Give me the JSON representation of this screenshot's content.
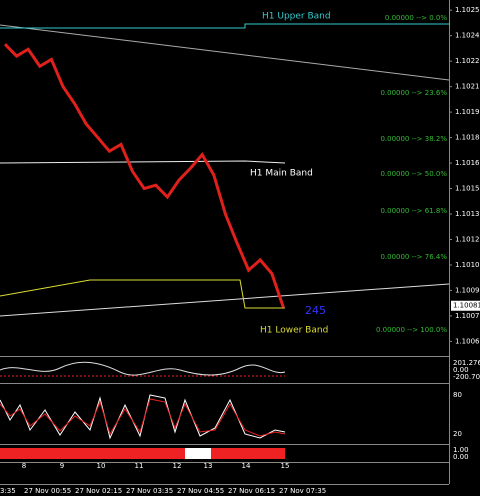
{
  "chart_data": {
    "type": "line",
    "values": [
      1.10235,
      1.10228,
      1.10232,
      1.10222,
      1.10226,
      1.1021,
      1.102,
      1.10188,
      1.1018,
      1.10172,
      1.10176,
      1.1016,
      1.1015,
      1.10152,
      1.10145,
      1.10155,
      1.10162,
      1.1017,
      1.10158,
      1.10135,
      1.10118,
      1.10102,
      1.10108,
      1.101,
      1.1008
    ],
    "color": "#e0201c",
    "ylim": [
      1.10052,
      1.10261
    ],
    "yticks": [
      {
        "value": 1.10255,
        "label": "1.10255"
      },
      {
        "value": 1.1024,
        "label": "1.10240"
      },
      {
        "value": 1.10225,
        "label": "1.10225"
      },
      {
        "value": 1.1021,
        "label": "1.10210"
      },
      {
        "value": 1.10195,
        "label": "1.10195"
      },
      {
        "value": 1.1018,
        "label": "1.10180"
      },
      {
        "value": 1.10165,
        "label": "1.10165"
      },
      {
        "value": 1.1015,
        "label": "1.10150"
      },
      {
        "value": 1.10135,
        "label": "1.10135"
      },
      {
        "value": 1.1012,
        "label": "1.10120"
      },
      {
        "value": 1.10105,
        "label": "1.10105"
      },
      {
        "value": 1.1009,
        "label": "1.10090"
      },
      {
        "value": 1.10075,
        "label": "1.10075"
      },
      {
        "value": 1.1006,
        "label": "1.10060"
      }
    ],
    "current_price": {
      "value": 1.10081,
      "label": "1.10081"
    },
    "fib_labels": [
      "0.00000 --> 0.0%",
      "0.00000 --> 23.6%",
      "0.00000 --> 38.2%",
      "0.00000 --> 50.0%",
      "0.00000 --> 61.8%",
      "0.00000 --> 76.4%",
      "0.00000 --> 100.0%"
    ],
    "band_labels": [
      "H1 Upper Band",
      "H1 Main Band",
      "H1 Lower Band"
    ],
    "counter": "245",
    "cci_labels": [
      "201.276",
      "0.00",
      "-200.70"
    ],
    "stoch_labels": [
      "80",
      "20"
    ],
    "bottom_labels": [
      "1.00",
      "0.00"
    ],
    "day_numbers": [
      "8",
      "9",
      "10",
      "11",
      "12",
      "13",
      "14",
      "15"
    ],
    "time_labels": [
      "3:35",
      "27 Nov 00:55",
      "27 Nov 02:15",
      "27 Nov 03:35",
      "27 Nov 04:55",
      "27 Nov 06:15",
      "27 Nov 07:35"
    ]
  }
}
